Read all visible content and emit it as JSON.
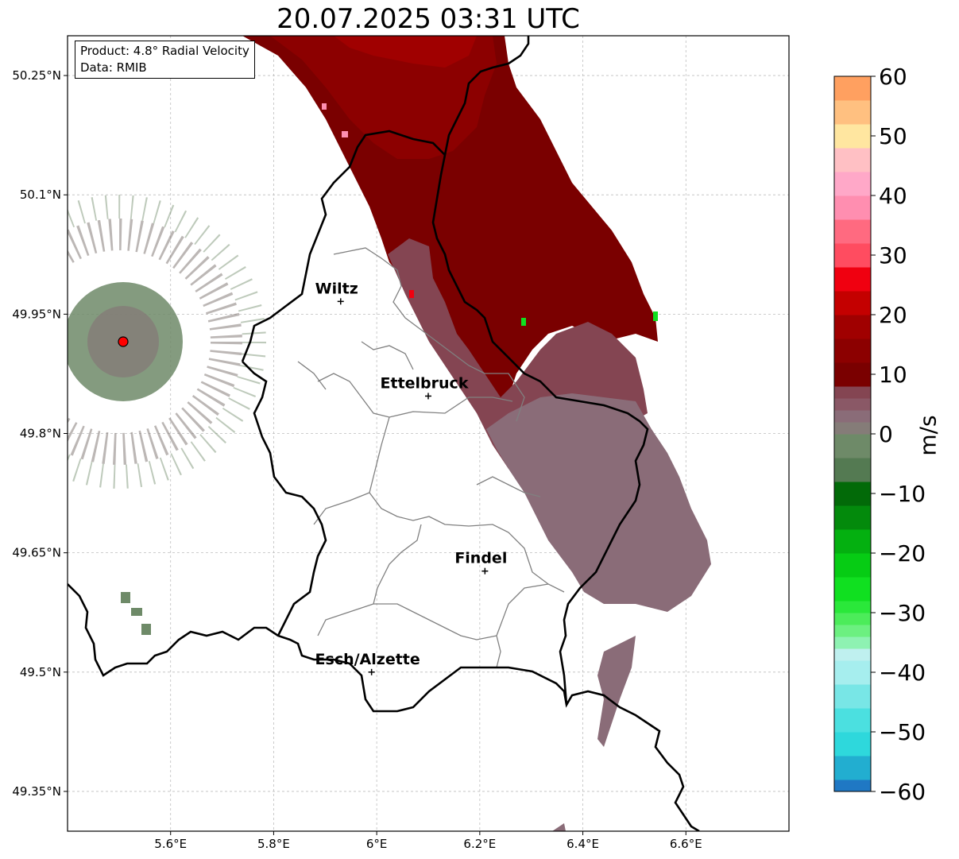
{
  "title": "20.07.2025 03:31 UTC",
  "info_box": {
    "product": "Product: 4.8° Radial Velocity",
    "data_source": "Data: RMIB"
  },
  "map": {
    "lon_range": [
      5.4,
      6.8
    ],
    "lat_range": [
      49.3,
      50.3
    ],
    "x_ticks": [
      {
        "value": 5.6,
        "label": "5.6°E"
      },
      {
        "value": 5.8,
        "label": "5.8°E"
      },
      {
        "value": 6.0,
        "label": "6°E"
      },
      {
        "value": 6.2,
        "label": "6.2°E"
      },
      {
        "value": 6.4,
        "label": "6.4°E"
      },
      {
        "value": 6.6,
        "label": "6.6°E"
      }
    ],
    "y_ticks": [
      {
        "value": 50.25,
        "label": "50.25°N"
      },
      {
        "value": 50.1,
        "label": "50.1°N"
      },
      {
        "value": 49.95,
        "label": "49.95°N"
      },
      {
        "value": 49.8,
        "label": "49.8°N"
      },
      {
        "value": 49.65,
        "label": "49.65°N"
      },
      {
        "value": 49.5,
        "label": "49.5°N"
      },
      {
        "value": 49.35,
        "label": "49.35°N"
      }
    ],
    "gridlines": true,
    "radar_site": {
      "lon": 5.505,
      "lat": 49.915,
      "color": "#ff0000"
    },
    "cities": [
      {
        "name": "Wiltz",
        "lon": 5.93,
        "lat": 49.966
      },
      {
        "name": "Ettelbruck",
        "lon": 6.1,
        "lat": 49.847
      },
      {
        "name": "Findel",
        "lon": 6.21,
        "lat": 49.627
      },
      {
        "name": "Esch/Alzette",
        "lon": 5.99,
        "lat": 49.5
      }
    ]
  },
  "colorbar": {
    "unit": "m/s",
    "min": -60,
    "max": 60,
    "ticks": [
      {
        "value": 60,
        "label": "60"
      },
      {
        "value": 50,
        "label": "50"
      },
      {
        "value": 40,
        "label": "40"
      },
      {
        "value": 30,
        "label": "30"
      },
      {
        "value": 20,
        "label": "20"
      },
      {
        "value": 10,
        "label": "10"
      },
      {
        "value": 0,
        "label": "0"
      },
      {
        "value": -10,
        "label": "−10"
      },
      {
        "value": -20,
        "label": "−20"
      },
      {
        "value": -30,
        "label": "−30"
      },
      {
        "value": -40,
        "label": "−40"
      },
      {
        "value": -50,
        "label": "−50"
      },
      {
        "value": -60,
        "label": "−60"
      }
    ],
    "stops": [
      {
        "from": -60,
        "to": -58,
        "color": "#1f78c4"
      },
      {
        "from": -58,
        "to": -54,
        "color": "#22aed0"
      },
      {
        "from": -54,
        "to": -50,
        "color": "#2ed8dc"
      },
      {
        "from": -50,
        "to": -46,
        "color": "#4be0e0"
      },
      {
        "from": -46,
        "to": -42,
        "color": "#78e6e6"
      },
      {
        "from": -42,
        "to": -38,
        "color": "#a6eeee"
      },
      {
        "from": -38,
        "to": -36,
        "color": "#bff0ef"
      },
      {
        "from": -36,
        "to": -34,
        "color": "#8ef2b2"
      },
      {
        "from": -34,
        "to": -32,
        "color": "#6cf080"
      },
      {
        "from": -32,
        "to": -30,
        "color": "#4cec5a"
      },
      {
        "from": -30,
        "to": -28,
        "color": "#2ae83a"
      },
      {
        "from": -28,
        "to": -24,
        "color": "#10e020"
      },
      {
        "from": -24,
        "to": -20,
        "color": "#06cc14"
      },
      {
        "from": -20,
        "to": -16,
        "color": "#04b010"
      },
      {
        "from": -16,
        "to": -12,
        "color": "#038a0c"
      },
      {
        "from": -12,
        "to": -8,
        "color": "#026a08"
      },
      {
        "from": -8,
        "to": -4,
        "color": "#547a52"
      },
      {
        "from": -4,
        "to": 0,
        "color": "#6e8a68"
      },
      {
        "from": 0,
        "to": 2,
        "color": "#857c78"
      },
      {
        "from": 2,
        "to": 4,
        "color": "#8a6c78"
      },
      {
        "from": 4,
        "to": 6,
        "color": "#8a5866"
      },
      {
        "from": 6,
        "to": 8,
        "color": "#844552"
      },
      {
        "from": 8,
        "to": 12,
        "color": "#7a0000"
      },
      {
        "from": 12,
        "to": 16,
        "color": "#8c0000"
      },
      {
        "from": 16,
        "to": 20,
        "color": "#a00000"
      },
      {
        "from": 20,
        "to": 24,
        "color": "#c40000"
      },
      {
        "from": 24,
        "to": 28,
        "color": "#f00010"
      },
      {
        "from": 28,
        "to": 32,
        "color": "#ff4c60"
      },
      {
        "from": 32,
        "to": 36,
        "color": "#ff6a80"
      },
      {
        "from": 36,
        "to": 40,
        "color": "#ff8eb0"
      },
      {
        "from": 40,
        "to": 44,
        "color": "#ffa8c8"
      },
      {
        "from": 44,
        "to": 48,
        "color": "#ffc0c4"
      },
      {
        "from": 48,
        "to": 52,
        "color": "#ffe6a0"
      },
      {
        "from": 52,
        "to": 56,
        "color": "#ffc080"
      },
      {
        "from": 56,
        "to": 60,
        "color": "#ffa060"
      }
    ]
  }
}
